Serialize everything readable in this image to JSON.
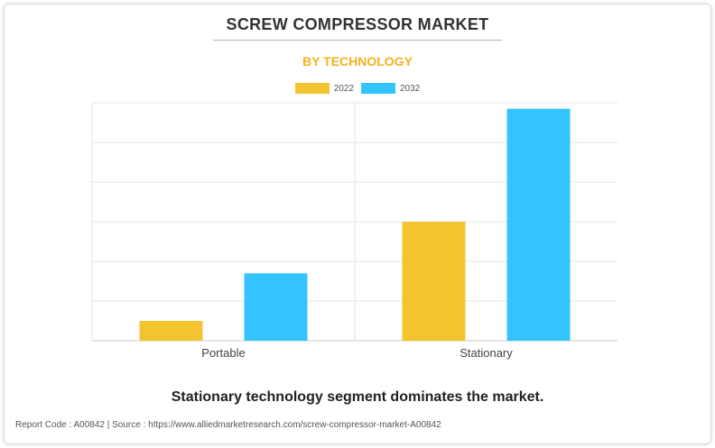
{
  "header": {
    "title": "SCREW COMPRESSOR MARKET",
    "subtitle": "BY TECHNOLOGY"
  },
  "legend": [
    {
      "label": "2022",
      "color": "#f4c430"
    },
    {
      "label": "2032",
      "color": "#33c4ff"
    }
  ],
  "chart_data": {
    "type": "bar",
    "title": "SCREW COMPRESSOR MARKET",
    "subtitle": "BY TECHNOLOGY",
    "categories": [
      "Portable",
      "Stationary"
    ],
    "series": [
      {
        "name": "2022",
        "color": "#f4c430",
        "values": [
          0.5,
          3.0
        ]
      },
      {
        "name": "2032",
        "color": "#33c4ff",
        "values": [
          1.7,
          5.85
        ]
      }
    ],
    "ylim": [
      0,
      6
    ],
    "y_ticks_labeled": false,
    "grid": true,
    "legend_position": "top-center"
  },
  "headline": "Stationary technology segment dominates the market.",
  "footer": "Report Code : A00842  |  Source : https://www.alliedmarketresearch.com/screw-compressor-market-A00842"
}
